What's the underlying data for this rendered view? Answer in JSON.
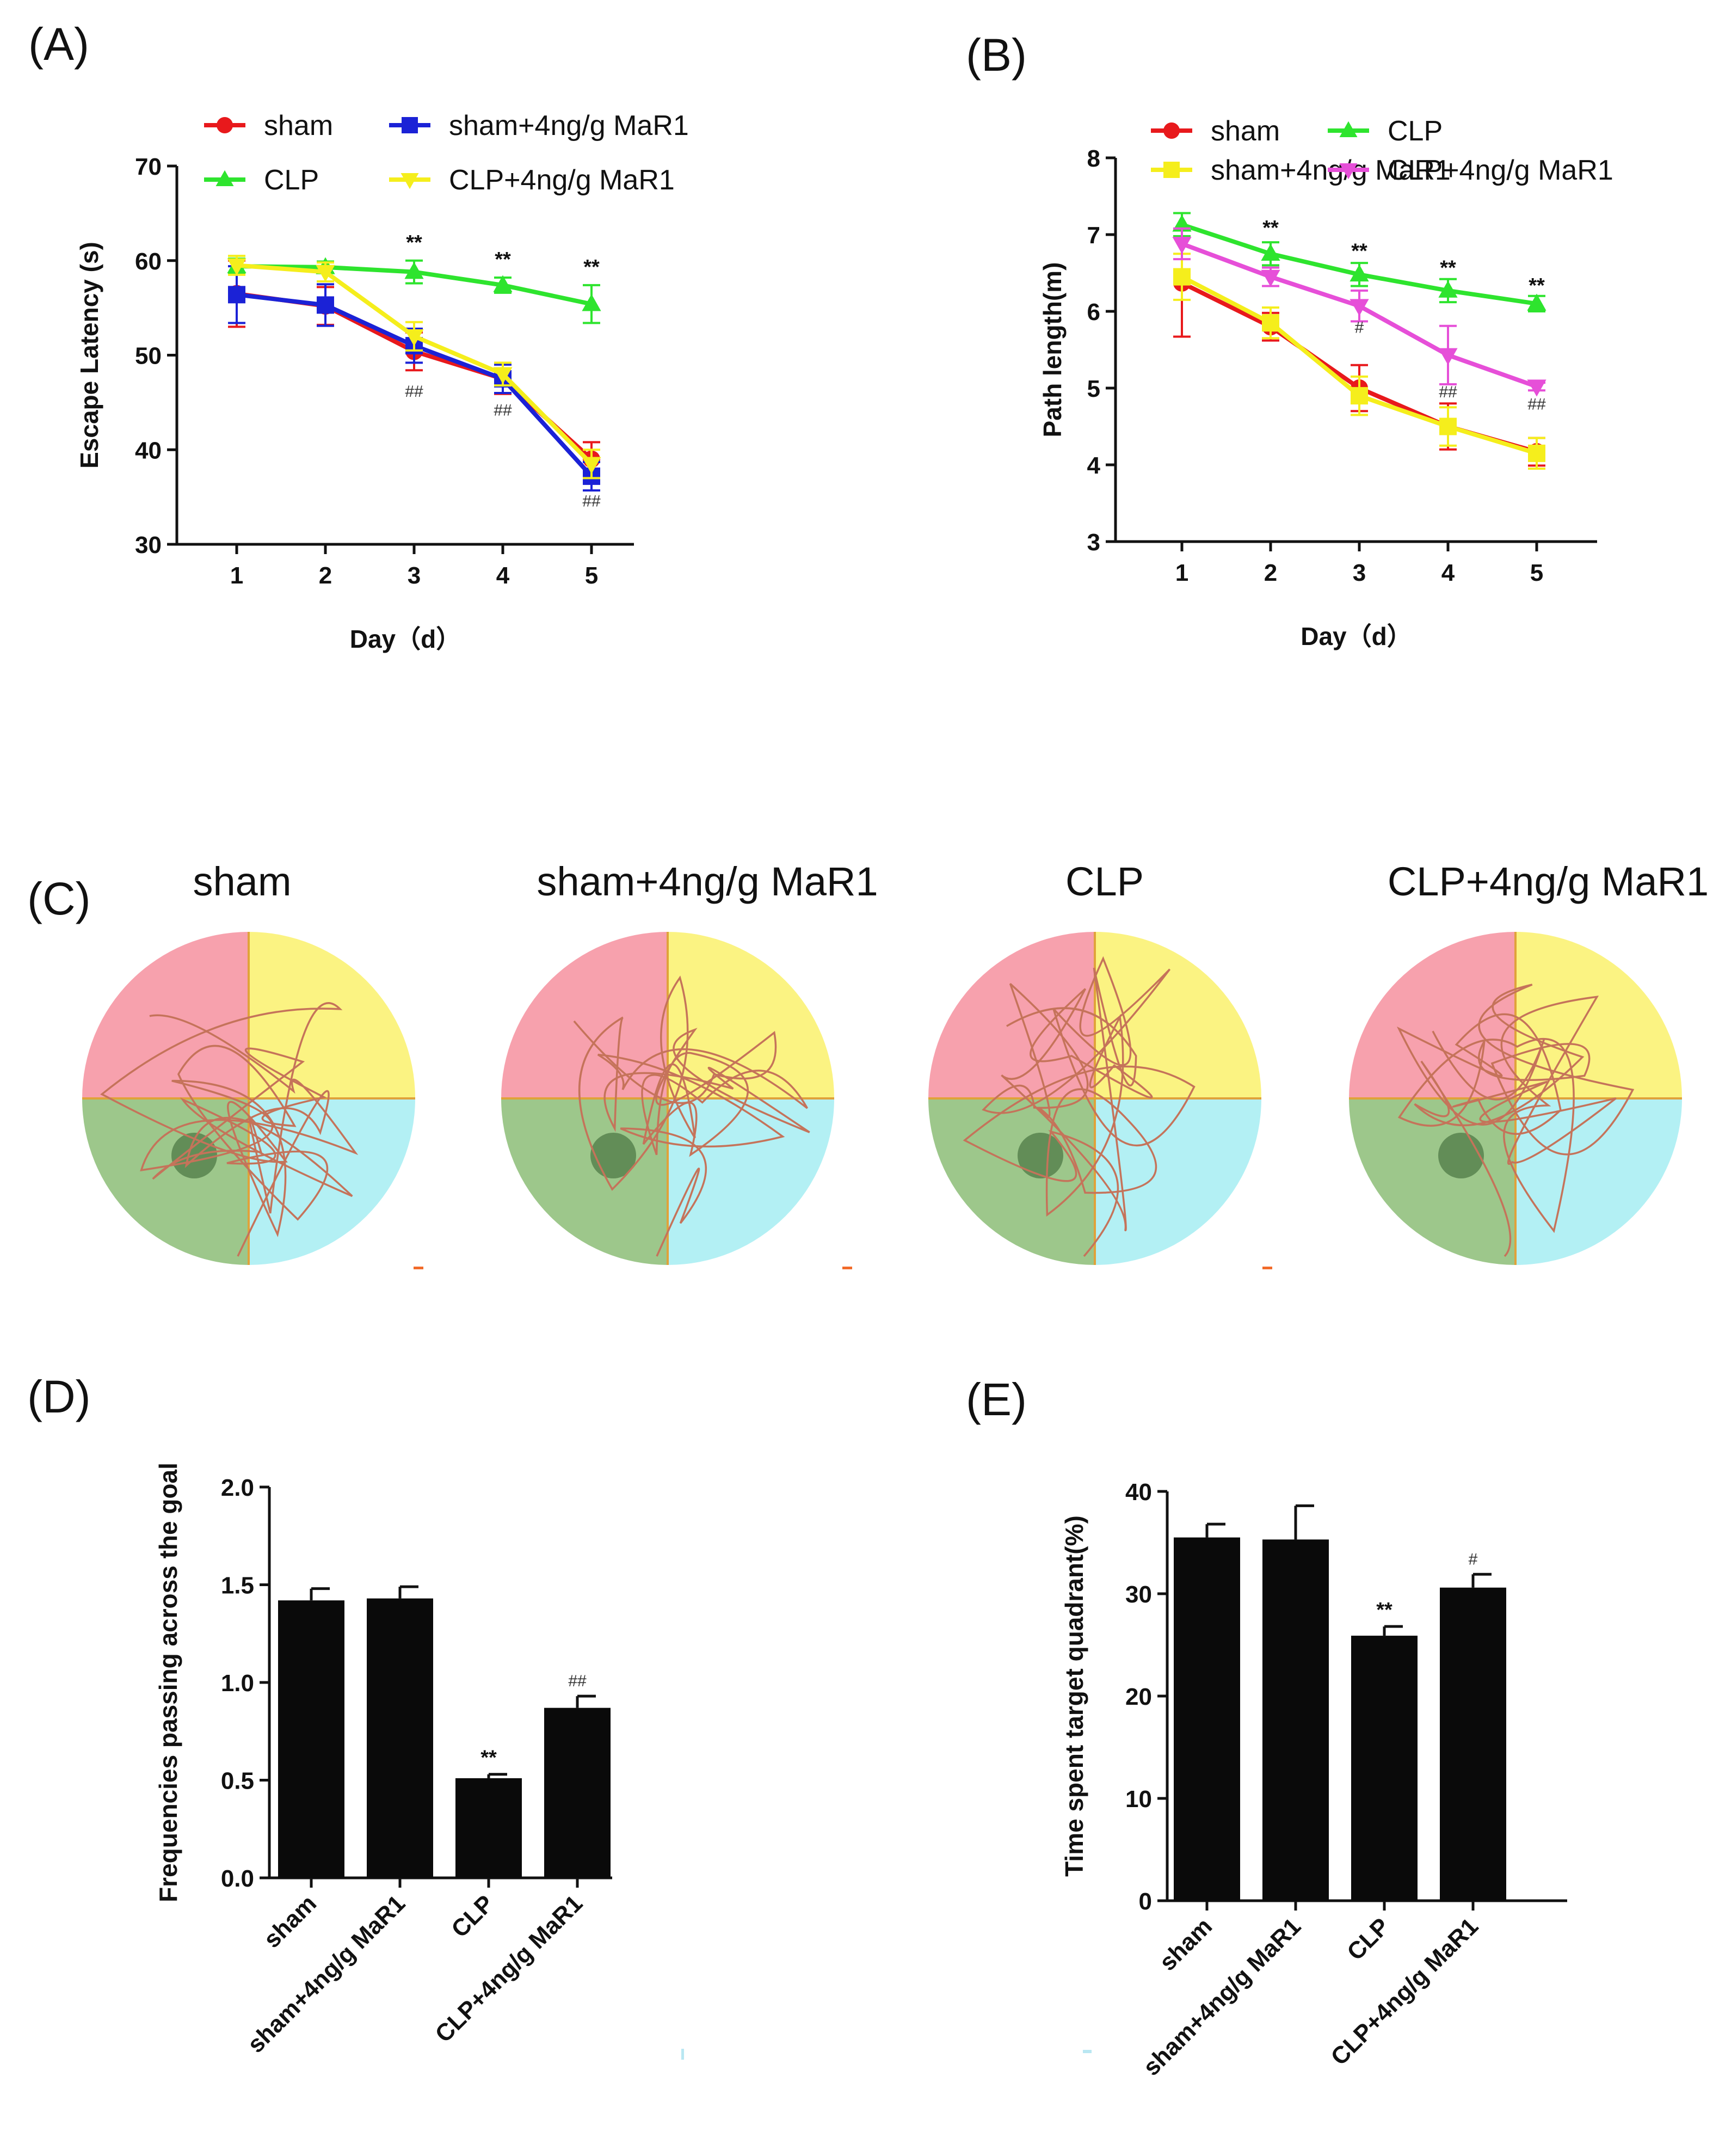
{
  "chart_data": [
    {
      "id": "A",
      "panel_label": "(A)",
      "type": "line",
      "xlabel": "Day（d）",
      "ylabel": "Escape Latency (s)",
      "x": [
        1,
        2,
        3,
        4,
        5
      ],
      "xticks": [
        "1",
        "2",
        "3",
        "4",
        "5"
      ],
      "ylim": [
        30,
        70
      ],
      "yticks": [
        30,
        40,
        50,
        60,
        70
      ],
      "legend_position": "top",
      "series": [
        {
          "name": "sham",
          "color": "#e8191c",
          "marker": "circle",
          "values": [
            56.5,
            55.2,
            50.4,
            47.5,
            39.0
          ],
          "errors": [
            3.5,
            2.0,
            2.0,
            1.6,
            1.8
          ]
        },
        {
          "name": "sham+4ng/g MaR1",
          "color": "#1b22d6",
          "marker": "square",
          "values": [
            56.4,
            55.3,
            51.0,
            47.5,
            37.2
          ],
          "errors": [
            3.0,
            2.2,
            1.8,
            1.5,
            1.5
          ]
        },
        {
          "name": "CLP",
          "color": "#2ee42e",
          "marker": "triangle-up",
          "values": [
            59.4,
            59.3,
            58.8,
            57.4,
            55.4
          ],
          "errors": [
            0.8,
            0.6,
            1.2,
            0.8,
            2.0
          ]
        },
        {
          "name": "CLP+4ng/g MaR1",
          "color": "#f5ee1c",
          "marker": "triangle-down",
          "values": [
            59.5,
            58.8,
            52.0,
            48.0,
            38.5
          ],
          "errors": [
            1.0,
            1.0,
            1.5,
            1.2,
            1.5
          ]
        }
      ],
      "annotations": [
        {
          "x": 3,
          "y": 61.2,
          "text": "**"
        },
        {
          "x": 4,
          "y": 59.4,
          "text": "**"
        },
        {
          "x": 5,
          "y": 58.6,
          "text": "**"
        },
        {
          "x": 3,
          "y": 45.6,
          "text": "##"
        },
        {
          "x": 4,
          "y": 43.6,
          "text": "##"
        },
        {
          "x": 5,
          "y": 34.0,
          "text": "##"
        }
      ]
    },
    {
      "id": "B",
      "panel_label": "(B)",
      "type": "line",
      "xlabel": "Day（d）",
      "ylabel": "Path length(m)",
      "x": [
        1,
        2,
        3,
        4,
        5
      ],
      "xticks": [
        "1",
        "2",
        "3",
        "4",
        "5"
      ],
      "ylim": [
        3,
        8
      ],
      "yticks": [
        3,
        4,
        5,
        6,
        7,
        8
      ],
      "legend_position": "top",
      "series": [
        {
          "name": "sham",
          "color": "#e8191c",
          "marker": "circle",
          "values": [
            6.37,
            5.8,
            5.0,
            4.5,
            4.17
          ],
          "errors": [
            0.7,
            0.18,
            0.3,
            0.3,
            0.18
          ]
        },
        {
          "name": "CLP",
          "color": "#2ee42e",
          "marker": "triangle-up",
          "values": [
            7.13,
            6.75,
            6.48,
            6.27,
            6.1
          ],
          "errors": [
            0.15,
            0.15,
            0.15,
            0.15,
            0.1
          ]
        },
        {
          "name": "sham+4ng/g MaR1",
          "color": "#f5ee1c",
          "marker": "square",
          "values": [
            6.45,
            5.85,
            4.9,
            4.5,
            4.15
          ],
          "errors": [
            0.3,
            0.2,
            0.25,
            0.25,
            0.2
          ]
        },
        {
          "name": "CLP+4ng/g MaR1",
          "color": "#e64fd8",
          "marker": "triangle-down",
          "values": [
            6.88,
            6.45,
            6.07,
            5.43,
            5.02
          ],
          "errors": [
            0.2,
            0.12,
            0.2,
            0.38,
            0.05
          ]
        }
      ],
      "annotations": [
        {
          "x": 2,
          "y": 7.0,
          "text": "**"
        },
        {
          "x": 3,
          "y": 6.7,
          "text": "**"
        },
        {
          "x": 4,
          "y": 6.48,
          "text": "**"
        },
        {
          "x": 5,
          "y": 6.25,
          "text": "**"
        },
        {
          "x": 3,
          "y": 5.72,
          "text": "#"
        },
        {
          "x": 4,
          "y": 4.88,
          "text": "##"
        },
        {
          "x": 5,
          "y": 4.72,
          "text": "##"
        }
      ]
    },
    {
      "id": "D",
      "panel_label": "(D)",
      "type": "bar",
      "ylabel": "Frequencies passing across the goal",
      "categories": [
        "sham",
        "sham+4ng/g MaR1",
        "CLP",
        "CLP+4ng/g MaR1"
      ],
      "values": [
        1.42,
        1.43,
        0.51,
        0.87
      ],
      "errors": [
        0.06,
        0.06,
        0.02,
        0.06
      ],
      "ylim": [
        0,
        2.0
      ],
      "yticks": [
        "0.0",
        "0.5",
        "1.0",
        "1.5",
        "2.0"
      ],
      "bar_labels": [
        "",
        "",
        "**",
        "##"
      ]
    },
    {
      "id": "E",
      "panel_label": "(E)",
      "type": "bar",
      "ylabel": "Time spent target quadrant(%)",
      "categories": [
        "sham",
        "sham+4ng/g MaR1",
        "CLP",
        "CLP+4ng/g MaR1"
      ],
      "values": [
        35.5,
        35.3,
        25.9,
        30.6
      ],
      "errors": [
        1.3,
        3.3,
        0.9,
        1.3
      ],
      "ylim": [
        0,
        40
      ],
      "yticks": [
        "0",
        "10",
        "20",
        "30",
        "40"
      ],
      "bar_labels": [
        "",
        "",
        "**",
        "#"
      ]
    }
  ],
  "panel_c": {
    "panel_label": "(C)",
    "titles": [
      "sham",
      "sham+4ng/g MaR1",
      "CLP",
      "CLP+4ng/g MaR1"
    ],
    "quadrant_colors": {
      "top_left": "#f7a1ad",
      "top_right": "#fbf382",
      "bottom_left": "#9dc78b",
      "bottom_right": "#b3f0f4"
    },
    "path_color": "#c5735a",
    "platform_color": "#4f7a45"
  }
}
